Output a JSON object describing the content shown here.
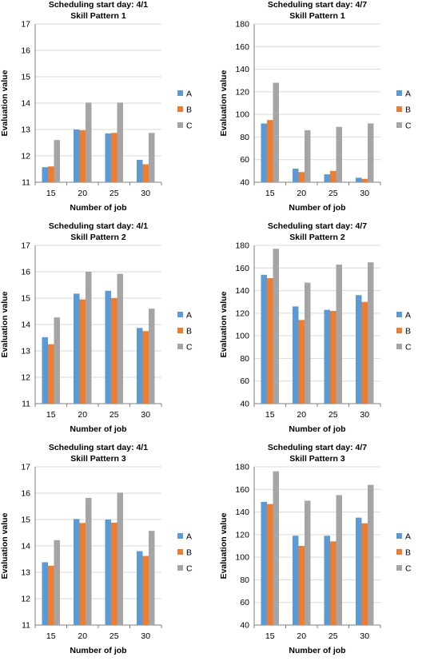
{
  "colors": {
    "A": "#5b9bd5",
    "B": "#ed7d31",
    "C": "#a5a5a5",
    "grid": "#d9d9d9",
    "axis": "#7f7f7f"
  },
  "chart_data": [
    {
      "type": "bar",
      "title": "Scheduling start day: 4/1",
      "subtitle": "Skill Pattern 1",
      "xlabel": "Number of job",
      "ylabel": "Evaluation value",
      "categories": [
        "15",
        "20",
        "25",
        "30"
      ],
      "ylim": [
        11,
        17
      ],
      "yticks": [
        11,
        12,
        13,
        14,
        15,
        16,
        17
      ],
      "grid": true,
      "legend": "right",
      "series": [
        {
          "name": "A",
          "values": [
            11.57,
            13.0,
            12.85,
            11.85
          ]
        },
        {
          "name": "B",
          "values": [
            11.6,
            12.97,
            12.87,
            11.68
          ]
        },
        {
          "name": "C",
          "values": [
            12.6,
            14.02,
            14.02,
            12.87
          ]
        }
      ]
    },
    {
      "type": "bar",
      "title": "Scheduling start day: 4/7",
      "subtitle": "Skill Pattern 1",
      "xlabel": "Number of job",
      "ylabel": "Evaluation value",
      "categories": [
        "15",
        "20",
        "25",
        "30"
      ],
      "ylim": [
        40,
        180
      ],
      "yticks": [
        40,
        60,
        80,
        100,
        120,
        140,
        160,
        180
      ],
      "grid": true,
      "legend": "right",
      "series": [
        {
          "name": "A",
          "values": [
            92,
            52,
            47,
            44
          ]
        },
        {
          "name": "B",
          "values": [
            95,
            49,
            50,
            43
          ]
        },
        {
          "name": "C",
          "values": [
            128,
            86,
            89,
            92
          ]
        }
      ]
    },
    {
      "type": "bar",
      "title": "Scheduling start day: 4/1",
      "subtitle": "Skill Pattern 2",
      "xlabel": "Number of job",
      "ylabel": "Evaluation value",
      "categories": [
        "15",
        "20",
        "25",
        "30"
      ],
      "ylim": [
        11,
        17
      ],
      "yticks": [
        11,
        12,
        13,
        14,
        15,
        16,
        17
      ],
      "grid": true,
      "legend": "right",
      "series": [
        {
          "name": "A",
          "values": [
            13.52,
            15.17,
            15.28,
            13.87
          ]
        },
        {
          "name": "B",
          "values": [
            13.25,
            14.95,
            15.0,
            13.75
          ]
        },
        {
          "name": "C",
          "values": [
            14.27,
            16.0,
            15.92,
            14.6
          ]
        }
      ]
    },
    {
      "type": "bar",
      "title": "Scheduling start day: 4/7",
      "subtitle": "Skill Pattern 2",
      "xlabel": "Number of job",
      "ylabel": "Evaluation value",
      "categories": [
        "15",
        "20",
        "25",
        "30"
      ],
      "ylim": [
        40,
        180
      ],
      "yticks": [
        40,
        60,
        80,
        100,
        120,
        140,
        160,
        180
      ],
      "grid": true,
      "legend": "right",
      "series": [
        {
          "name": "A",
          "values": [
            154,
            126,
            123,
            136
          ]
        },
        {
          "name": "B",
          "values": [
            151,
            114,
            122,
            130
          ]
        },
        {
          "name": "C",
          "values": [
            177,
            147,
            163,
            165
          ]
        }
      ]
    },
    {
      "type": "bar",
      "title": "Scheduling start day: 4/1",
      "subtitle": "Skill Pattern 3",
      "xlabel": "Number of job",
      "ylabel": "Evaluation value",
      "categories": [
        "15",
        "20",
        "25",
        "30"
      ],
      "ylim": [
        11,
        17
      ],
      "yticks": [
        11,
        12,
        13,
        14,
        15,
        16,
        17
      ],
      "grid": true,
      "legend": "right",
      "series": [
        {
          "name": "A",
          "values": [
            13.38,
            15.02,
            15.0,
            13.8
          ]
        },
        {
          "name": "B",
          "values": [
            13.25,
            14.87,
            14.88,
            13.62
          ]
        },
        {
          "name": "C",
          "values": [
            14.22,
            15.82,
            16.02,
            14.57
          ]
        }
      ]
    },
    {
      "type": "bar",
      "title": "Scheduling start day: 4/7",
      "subtitle": "Skill Pattern 3",
      "xlabel": "Number of job",
      "ylabel": "Evaluation value",
      "categories": [
        "15",
        "20",
        "25",
        "30"
      ],
      "ylim": [
        40,
        180
      ],
      "yticks": [
        40,
        60,
        80,
        100,
        120,
        140,
        160,
        180
      ],
      "grid": true,
      "legend": "right",
      "series": [
        {
          "name": "A",
          "values": [
            149,
            119,
            119,
            135
          ]
        },
        {
          "name": "B",
          "values": [
            147,
            110,
            114,
            130
          ]
        },
        {
          "name": "C",
          "values": [
            176,
            150,
            155,
            164
          ]
        }
      ]
    }
  ]
}
